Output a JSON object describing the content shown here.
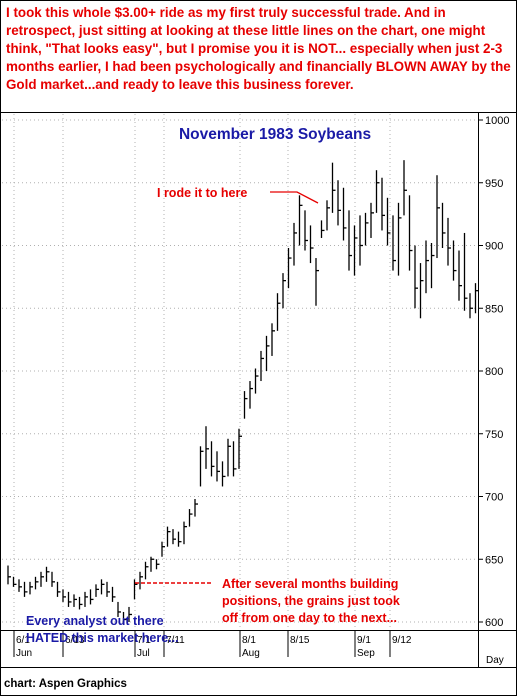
{
  "intro_text": "I took this whole $3.00+ ride as my first truly successful trade. And in retrospect, just sitting at looking at these little lines on the chart, one might think, \"That looks easy\", but I promise you it is NOT... especially when just 2-3 months earlier, I had been psychologically and financially BLOWN AWAY by the Gold market...and ready to leave this business forever.",
  "credit": "chart: Aspen Graphics",
  "colors": {
    "intro": "#e60000",
    "title": "#1a1aa6",
    "annotation_red": "#e60000",
    "annotation_blue": "#1a1aa6",
    "bars": "#000000",
    "grid": "#b0b0b0"
  },
  "chart_data": {
    "type": "ohlc",
    "title": "November 1983 Soybeans",
    "period_label": "Day",
    "ylim": [
      590,
      1005
    ],
    "y_ticks": [
      600,
      650,
      700,
      750,
      800,
      850,
      900,
      950,
      1000
    ],
    "y_tick_labels": [
      "600",
      "650",
      "700",
      "750",
      "800",
      "850",
      "900",
      "950",
      "1000"
    ],
    "date_ticks": [
      "6/1",
      "6/13",
      "7/1",
      "7/11",
      "8/1",
      "8/15",
      "9/1",
      "9/12"
    ],
    "month_labels": [
      "Jun",
      "Jul",
      "Aug",
      "Sep"
    ],
    "grid": "dotted",
    "bars": [
      {
        "h": 645,
        "l": 630,
        "c": 636
      },
      {
        "h": 636,
        "l": 628,
        "c": 630
      },
      {
        "h": 634,
        "l": 624,
        "c": 628
      },
      {
        "h": 632,
        "l": 620,
        "c": 624
      },
      {
        "h": 632,
        "l": 622,
        "c": 628
      },
      {
        "h": 636,
        "l": 626,
        "c": 632
      },
      {
        "h": 640,
        "l": 628,
        "c": 636
      },
      {
        "h": 644,
        "l": 632,
        "c": 640
      },
      {
        "h": 640,
        "l": 628,
        "c": 632
      },
      {
        "h": 632,
        "l": 620,
        "c": 624
      },
      {
        "h": 626,
        "l": 616,
        "c": 620
      },
      {
        "h": 624,
        "l": 612,
        "c": 616
      },
      {
        "h": 622,
        "l": 612,
        "c": 618
      },
      {
        "h": 620,
        "l": 610,
        "c": 614
      },
      {
        "h": 624,
        "l": 612,
        "c": 620
      },
      {
        "h": 626,
        "l": 614,
        "c": 618
      },
      {
        "h": 630,
        "l": 620,
        "c": 626
      },
      {
        "h": 634,
        "l": 622,
        "c": 630
      },
      {
        "h": 632,
        "l": 620,
        "c": 624
      },
      {
        "h": 628,
        "l": 616,
        "c": 620
      },
      {
        "h": 616,
        "l": 604,
        "c": 608
      },
      {
        "h": 608,
        "l": 598,
        "c": 602
      },
      {
        "h": 612,
        "l": 600,
        "c": 606
      },
      {
        "h": 634,
        "l": 618,
        "c": 630
      },
      {
        "h": 640,
        "l": 626,
        "c": 636
      },
      {
        "h": 648,
        "l": 634,
        "c": 644
      },
      {
        "h": 652,
        "l": 640,
        "c": 650
      },
      {
        "h": 650,
        "l": 642,
        "c": 646
      },
      {
        "h": 664,
        "l": 652,
        "c": 660
      },
      {
        "h": 676,
        "l": 660,
        "c": 672
      },
      {
        "h": 674,
        "l": 662,
        "c": 666
      },
      {
        "h": 672,
        "l": 660,
        "c": 664
      },
      {
        "h": 680,
        "l": 662,
        "c": 676
      },
      {
        "h": 690,
        "l": 676,
        "c": 686
      },
      {
        "h": 698,
        "l": 684,
        "c": 694
      },
      {
        "h": 740,
        "l": 708,
        "c": 736
      },
      {
        "h": 756,
        "l": 722,
        "c": 738
      },
      {
        "h": 744,
        "l": 716,
        "c": 724
      },
      {
        "h": 736,
        "l": 712,
        "c": 720
      },
      {
        "h": 728,
        "l": 708,
        "c": 716
      },
      {
        "h": 746,
        "l": 716,
        "c": 740
      },
      {
        "h": 744,
        "l": 716,
        "c": 722
      },
      {
        "h": 754,
        "l": 722,
        "c": 748
      },
      {
        "h": 784,
        "l": 762,
        "c": 778
      },
      {
        "h": 792,
        "l": 770,
        "c": 786
      },
      {
        "h": 802,
        "l": 782,
        "c": 796
      },
      {
        "h": 816,
        "l": 792,
        "c": 810
      },
      {
        "h": 828,
        "l": 800,
        "c": 820
      },
      {
        "h": 838,
        "l": 812,
        "c": 832
      },
      {
        "h": 862,
        "l": 832,
        "c": 854
      },
      {
        "h": 878,
        "l": 850,
        "c": 872
      },
      {
        "h": 898,
        "l": 866,
        "c": 890
      },
      {
        "h": 918,
        "l": 884,
        "c": 910
      },
      {
        "h": 940,
        "l": 900,
        "c": 932
      },
      {
        "h": 928,
        "l": 896,
        "c": 904
      },
      {
        "h": 916,
        "l": 886,
        "c": 898
      },
      {
        "h": 890,
        "l": 852,
        "c": 880
      },
      {
        "h": 920,
        "l": 906,
        "c": 912
      },
      {
        "h": 936,
        "l": 912,
        "c": 930
      },
      {
        "h": 966,
        "l": 926,
        "c": 944
      },
      {
        "h": 952,
        "l": 916,
        "c": 928
      },
      {
        "h": 946,
        "l": 904,
        "c": 914
      },
      {
        "h": 928,
        "l": 880,
        "c": 892
      },
      {
        "h": 916,
        "l": 876,
        "c": 906
      },
      {
        "h": 924,
        "l": 884,
        "c": 900
      },
      {
        "h": 926,
        "l": 900,
        "c": 918
      },
      {
        "h": 934,
        "l": 906,
        "c": 926
      },
      {
        "h": 960,
        "l": 926,
        "c": 950
      },
      {
        "h": 954,
        "l": 912,
        "c": 924
      },
      {
        "h": 938,
        "l": 900,
        "c": 910
      },
      {
        "h": 924,
        "l": 880,
        "c": 888
      },
      {
        "h": 934,
        "l": 876,
        "c": 922
      },
      {
        "h": 968,
        "l": 924,
        "c": 944
      },
      {
        "h": 940,
        "l": 880,
        "c": 896
      },
      {
        "h": 900,
        "l": 850,
        "c": 866
      },
      {
        "h": 886,
        "l": 842,
        "c": 872
      },
      {
        "h": 904,
        "l": 862,
        "c": 888
      },
      {
        "h": 902,
        "l": 866,
        "c": 892
      },
      {
        "h": 956,
        "l": 890,
        "c": 930
      },
      {
        "h": 934,
        "l": 898,
        "c": 910
      },
      {
        "h": 922,
        "l": 884,
        "c": 898
      },
      {
        "h": 904,
        "l": 872,
        "c": 880
      },
      {
        "h": 896,
        "l": 856,
        "c": 868
      },
      {
        "h": 910,
        "l": 848,
        "c": 858
      },
      {
        "h": 862,
        "l": 842,
        "c": 850
      },
      {
        "h": 870,
        "l": 846,
        "c": 864
      }
    ],
    "annotations": {
      "top": "I rode it to here",
      "breakout_line1": "After several months building",
      "breakout_line2": "positions, the grains just took",
      "breakout_line3": "off from one day to the next...",
      "hated_line1": "Every analyst out there",
      "hated_line2": "HATED this market here..."
    }
  }
}
